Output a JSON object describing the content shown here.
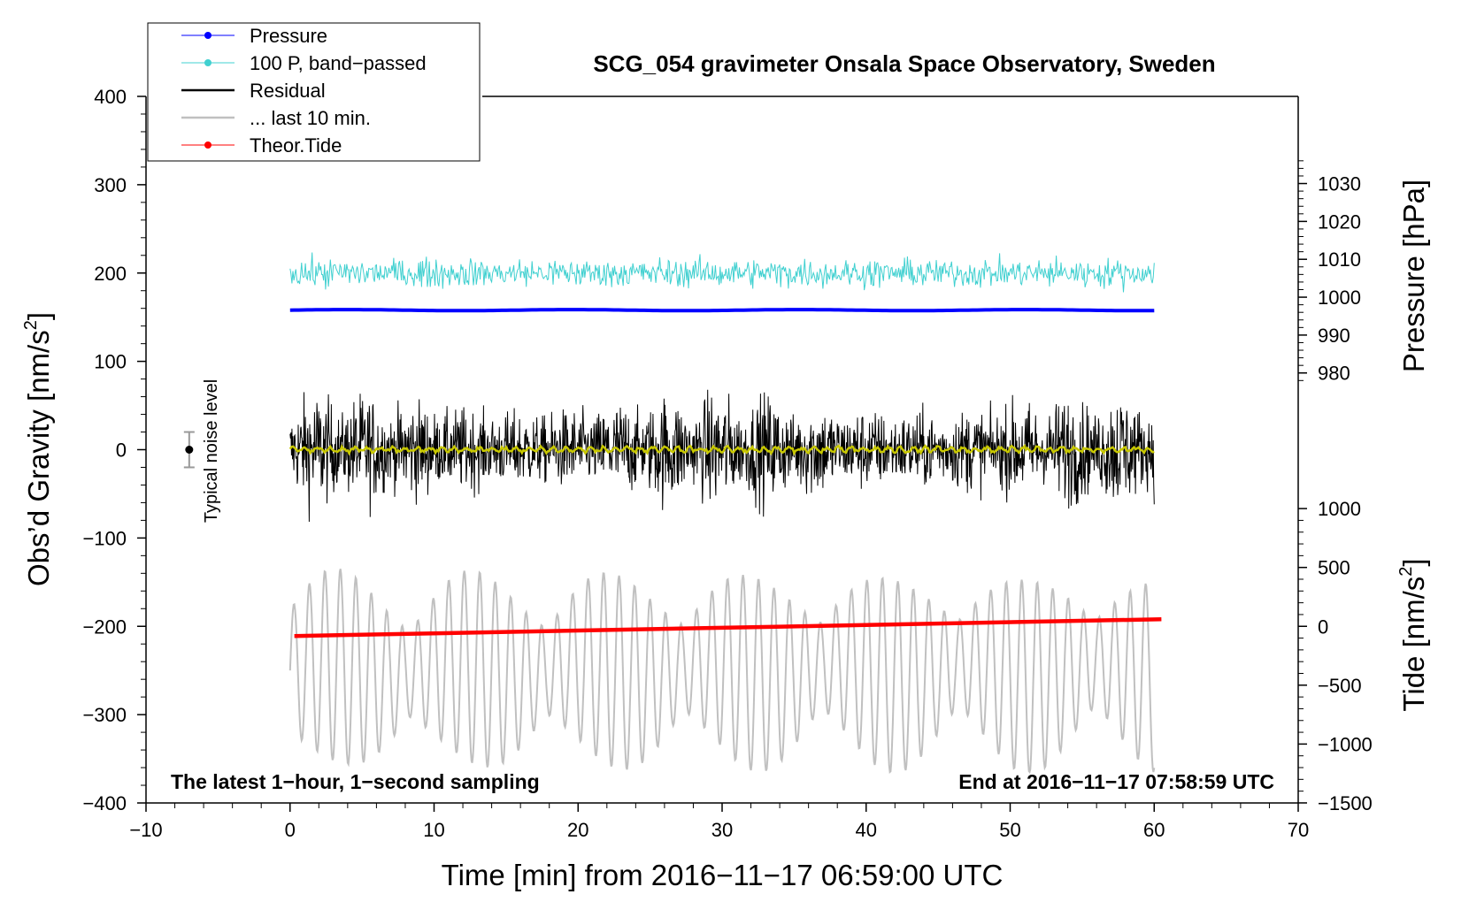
{
  "chart_data": {
    "type": "line",
    "title": "SCG_054 gravimeter Onsala Space Observatory, Sweden",
    "xlabel": "Time [min] from 2016−11−17 06:59:00 UTC",
    "ylabel_main": "Obs’d Gravity [nm/s",
    "ylabel_pressure": "Pressure [hPa]",
    "ylabel_tide": "Tide [nm/s",
    "unit_superscript": "2",
    "unit_close": "]",
    "xlim": [
      -10,
      70
    ],
    "ylim": [
      -400,
      400
    ],
    "x_ticks": [
      -10,
      0,
      10,
      20,
      30,
      40,
      50,
      60,
      70
    ],
    "x_tick_labels": [
      "−10",
      "0",
      "10",
      "20",
      "30",
      "40",
      "50",
      "60",
      "70"
    ],
    "y_ticks": [
      400,
      300,
      200,
      100,
      0,
      -100,
      -200,
      -300,
      -400
    ],
    "y_tick_labels": [
      "400",
      "300",
      "200",
      "100",
      "0",
      "−100",
      "−200",
      "−300",
      "−400"
    ],
    "pressure_axis": {
      "range_gravity": [
        -400,
        400
      ],
      "range_hpa": [
        866.5,
        1053
      ],
      "ticks": [
        1030,
        1020,
        1010,
        1000,
        990,
        980
      ],
      "tick_labels": [
        "1030",
        "1020",
        "1010",
        "1000",
        "990",
        "980"
      ]
    },
    "tide_axis": {
      "ticks": [
        1000,
        500,
        0,
        -500,
        -1000,
        -1500
      ],
      "tick_labels": [
        "1000",
        "500",
        "0",
        "−500",
        "−1000",
        "−1500"
      ],
      "gravity_at_tide_zero": -200,
      "gravity_per_tide_unit": 0.1333
    },
    "legend": [
      {
        "label": "Pressure",
        "color": "#0000ff",
        "marker": true
      },
      {
        "label": "100 P, band−passed",
        "color": "#40d0d0",
        "marker": true
      },
      {
        "label": "Residual",
        "color": "#000000",
        "marker": false
      },
      {
        "label": "... last 10 min.",
        "color": "#c0c0c0",
        "marker": false
      },
      {
        "label": "Theor.Tide",
        "color": "#ff0000",
        "marker": true
      }
    ],
    "annotations": {
      "noise_label": "Typical noise level",
      "noise_bar": {
        "x": -7,
        "y": 0,
        "half_range": 20
      },
      "bottom_left": "The latest 1−hour, 1−second sampling",
      "bottom_right": "End at 2016−11−17 07:58:59 UTC"
    },
    "series": [
      {
        "name": "Pressure",
        "color": "#0000ff",
        "x_range": [
          0,
          60
        ],
        "gravity_level": 158,
        "hPa": 996
      },
      {
        "name": "100 P, band−passed",
        "color": "#40d0d0",
        "x_range": [
          0,
          60
        ],
        "center": 200,
        "amplitude": 25
      },
      {
        "name": "Residual",
        "color": "#000000",
        "x_range": [
          0,
          60
        ],
        "center": 0,
        "amplitude": 110
      },
      {
        "name": "Residual smoothed",
        "color": "#c8c800",
        "x_range": [
          0,
          60
        ],
        "center": 0,
        "amplitude": 4
      },
      {
        "name": "... last 10 min.",
        "color": "#c0c0c0",
        "x_range": [
          0,
          60
        ],
        "center": -250,
        "amplitude": 110,
        "min_value": -365,
        "max_value": -135
      },
      {
        "name": "Theor.Tide",
        "color": "#ff0000",
        "x": [
          0.3,
          60.5
        ],
        "y": [
          -211,
          -192
        ],
        "tide_nm_s2": [
          -83,
          60
        ]
      }
    ]
  }
}
